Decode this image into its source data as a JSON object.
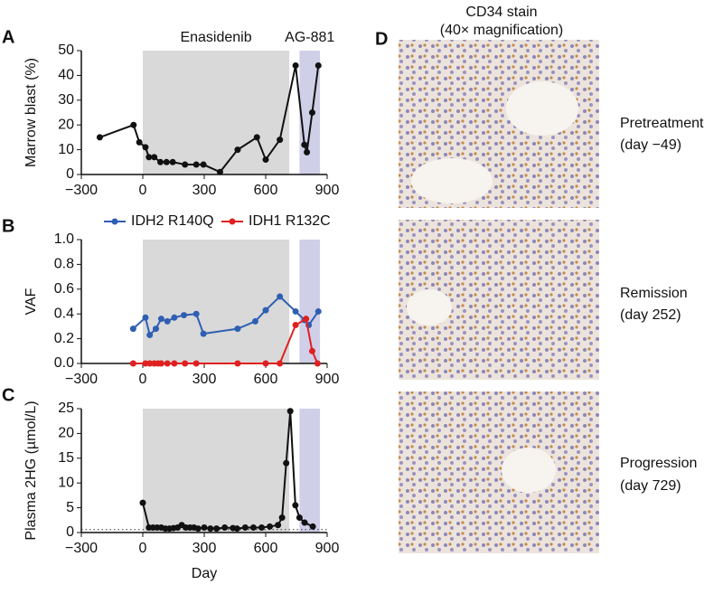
{
  "chart_data": [
    {
      "type": "line",
      "panel": "A",
      "ylabel": "Marrow blast (%)",
      "xlim": [
        -300,
        900
      ],
      "xticks": [
        {
          "value": -300,
          "label": "−300"
        },
        0,
        300,
        600,
        900
      ],
      "ylim": [
        0,
        50
      ],
      "yticks": [
        0,
        10,
        20,
        30,
        40,
        50
      ],
      "spans": [
        {
          "label": "Enasidenib",
          "start": 0,
          "end": 715,
          "color": "#d9d9d9"
        },
        {
          "label": "AG-881",
          "start": 765,
          "end": 865,
          "color": "#cfcfe8"
        }
      ],
      "series": [
        {
          "color": "#111111",
          "x": [
            -210,
            -45,
            -17,
            13,
            30,
            56,
            86,
            116,
            146,
            206,
            261,
            296,
            377,
            463,
            557,
            600,
            669,
            746,
            789,
            801,
            827,
            857
          ],
          "values": [
            15,
            20,
            13,
            11,
            7,
            7,
            5,
            5,
            5,
            4,
            4,
            4,
            1,
            10,
            15,
            6,
            14,
            44,
            12,
            9,
            25,
            44
          ]
        }
      ]
    },
    {
      "type": "line",
      "panel": "B",
      "ylabel": "VAF",
      "xlim": [
        -300,
        900
      ],
      "xticks": [
        {
          "value": -300,
          "label": "−300"
        },
        0,
        300,
        600,
        900
      ],
      "ylim": [
        0,
        1
      ],
      "yticks": [
        {
          "value": 0,
          "label": "0.0"
        },
        {
          "value": 0.2,
          "label": "0.2"
        },
        {
          "value": 0.4,
          "label": "0.4"
        },
        {
          "value": 0.6,
          "label": "0.6"
        },
        {
          "value": 0.8,
          "label": "0.8"
        },
        {
          "value": 1,
          "label": "1.0"
        }
      ],
      "spans": [
        {
          "start": 0,
          "end": 715,
          "color": "#d9d9d9"
        },
        {
          "start": 765,
          "end": 865,
          "color": "#cfcfe8"
        }
      ],
      "series": [
        {
          "name": "IDH2 R140Q",
          "color": "#2f5fb3",
          "x": [
            -47,
            13,
            34,
            64,
            90,
            120,
            154,
            201,
            261,
            296,
            463,
            549,
            600,
            669,
            746,
            790,
            810,
            857
          ],
          "values": [
            0.28,
            0.37,
            0.23,
            0.28,
            0.36,
            0.34,
            0.37,
            0.39,
            0.4,
            0.24,
            0.28,
            0.34,
            0.43,
            0.54,
            0.42,
            0.35,
            0.31,
            0.42
          ]
        },
        {
          "name": "IDH1 R132C",
          "color": "#e02020",
          "x": [
            -47,
            13,
            34,
            56,
            75,
            90,
            120,
            154,
            206,
            261,
            463,
            600,
            669,
            746,
            797,
            827,
            853
          ],
          "values": [
            0,
            0,
            0,
            0,
            0,
            0,
            0,
            0,
            0,
            0,
            0,
            0,
            0,
            0.31,
            0.36,
            0.1,
            0
          ]
        }
      ]
    },
    {
      "type": "line",
      "panel": "C",
      "ylabel": "Plasma 2HG (µmol/L)",
      "xlabel": "Day",
      "xlim": [
        -300,
        900
      ],
      "xticks": [
        {
          "value": -300,
          "label": "−300"
        },
        0,
        300,
        600,
        900
      ],
      "ylim": [
        0,
        25
      ],
      "yticks": [
        0,
        5,
        10,
        15,
        20,
        25
      ],
      "hline": 0.6,
      "spans": [
        {
          "start": 0,
          "end": 715,
          "color": "#d9d9d9"
        },
        {
          "start": 765,
          "end": 865,
          "color": "#cfcfe8"
        }
      ],
      "series": [
        {
          "color": "#111111",
          "x": [
            0,
            30,
            50,
            70,
            90,
            110,
            130,
            150,
            170,
            190,
            210,
            230,
            250,
            270,
            300,
            330,
            360,
            400,
            440,
            460,
            500,
            540,
            580,
            620,
            660,
            680,
            700,
            720,
            745,
            765,
            790,
            830
          ],
          "values": [
            6,
            1,
            1,
            1,
            1,
            0.8,
            0.8,
            0.9,
            1,
            1.5,
            1,
            1,
            1,
            0.8,
            1,
            0.8,
            0.8,
            1,
            0.9,
            0.8,
            1,
            1,
            1,
            1.2,
            1.5,
            3,
            14,
            24.5,
            5.5,
            3,
            2,
            1.2
          ]
        }
      ]
    }
  ],
  "panel_d": {
    "panel": "D",
    "title": [
      "CD34 stain",
      "(40× magnification)"
    ],
    "images": [
      {
        "label": [
          "Pretreatment",
          "(day −49)"
        ]
      },
      {
        "label": [
          "Remission",
          "(day 252)"
        ]
      },
      {
        "label": [
          "Progression",
          "(day 729)"
        ]
      }
    ]
  }
}
